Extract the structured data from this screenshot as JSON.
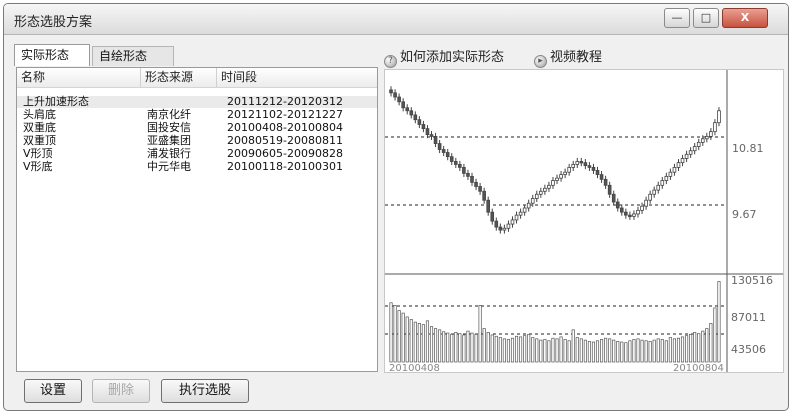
{
  "window": {
    "title": "形态选股方案",
    "min_glyph": "—",
    "max_glyph": "□",
    "close_glyph": "X"
  },
  "tabs": [
    {
      "label": "实际形态"
    },
    {
      "label": "自绘形态"
    }
  ],
  "list": {
    "columns": [
      "名称",
      "形态来源",
      "时间段"
    ],
    "rows": [
      {
        "name": "上升加速形态",
        "source": "",
        "period": "20111212-20120312"
      },
      {
        "name": "头肩底",
        "source": "南京化纤",
        "period": "20121102-20121227"
      },
      {
        "name": "双重底",
        "source": "国投安信",
        "period": "20100408-20100804"
      },
      {
        "name": "双重顶",
        "source": "亚盛集团",
        "period": "20080519-20080811"
      },
      {
        "name": "V形顶",
        "source": "浦发银行",
        "period": "20090605-20090828"
      },
      {
        "name": "V形底",
        "source": "中元华电",
        "period": "20100118-20100301"
      }
    ]
  },
  "links": {
    "how_to_add": "如何添加实际形态",
    "video": "视频教程"
  },
  "chart": {
    "price_labels": [
      "10.81",
      "9.67"
    ],
    "volume_labels": [
      "130516",
      "87011",
      "43506"
    ],
    "date_start": "20100408",
    "date_end": "20100804"
  },
  "chart_data": {
    "type": "candlestick",
    "price_levels": [
      10.81,
      9.67
    ],
    "volume_levels": [
      130516,
      87011,
      43506
    ],
    "x_range": [
      "20100408",
      "20100804"
    ],
    "closes": [
      11.55,
      11.48,
      11.4,
      11.3,
      11.25,
      11.18,
      11.1,
      11.02,
      10.95,
      10.85,
      10.82,
      10.7,
      10.6,
      10.55,
      10.48,
      10.4,
      10.35,
      10.3,
      10.2,
      10.15,
      10.05,
      9.98,
      9.9,
      9.75,
      9.55,
      9.4,
      9.3,
      9.25,
      9.28,
      9.35,
      9.42,
      9.5,
      9.55,
      9.62,
      9.7,
      9.78,
      9.85,
      9.9,
      9.95,
      10.0,
      10.08,
      10.12,
      10.18,
      10.22,
      10.3,
      10.35,
      10.4,
      10.38,
      10.33,
      10.3,
      10.25,
      10.18,
      10.1,
      10.0,
      9.85,
      9.72,
      9.62,
      9.55,
      9.5,
      9.48,
      9.52,
      9.58,
      9.65,
      9.75,
      9.85,
      9.92,
      10.0,
      10.08,
      10.15,
      10.22,
      10.3,
      10.38,
      10.45,
      10.52,
      10.58,
      10.65,
      10.72,
      10.78,
      10.82,
      10.9,
      11.05,
      11.25
    ],
    "volumes": [
      92000,
      88000,
      80000,
      76000,
      70000,
      66000,
      62000,
      60000,
      58000,
      64000,
      55000,
      52000,
      50000,
      47000,
      45000,
      43000,
      46000,
      44000,
      42000,
      48000,
      45000,
      43000,
      88000,
      52000,
      46000,
      42000,
      40000,
      38000,
      36000,
      35000,
      37000,
      40000,
      39000,
      41000,
      43000,
      38000,
      36000,
      34000,
      35000,
      33000,
      37000,
      36000,
      39000,
      35000,
      33000,
      50000,
      38000,
      36000,
      34000,
      32000,
      31000,
      33000,
      35000,
      37000,
      36000,
      34000,
      32000,
      31000,
      30000,
      33000,
      35000,
      36000,
      34000,
      33000,
      32000,
      34000,
      36000,
      35000,
      33000,
      38000,
      36000,
      37000,
      39000,
      41000,
      43000,
      46000,
      44000,
      48000,
      52000,
      60000,
      84000,
      125000
    ]
  },
  "buttons": {
    "settings": "设置",
    "delete": "删除",
    "execute": "执行选股"
  }
}
